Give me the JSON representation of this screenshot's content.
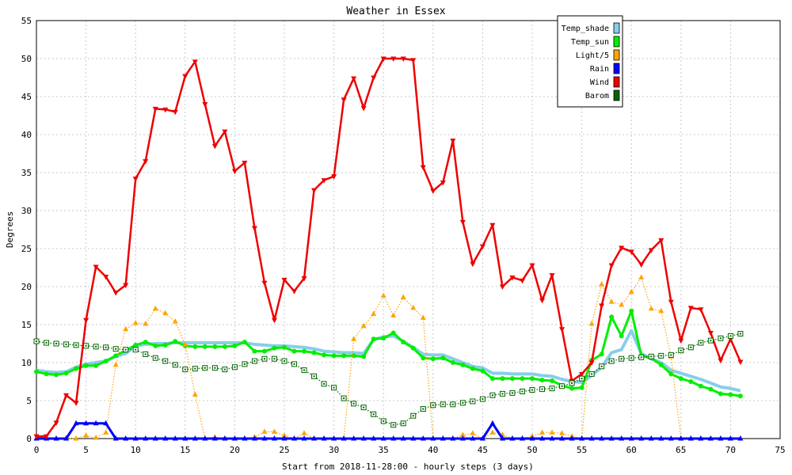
{
  "chart_data": {
    "type": "line",
    "title": "Weather in Essex",
    "xlabel": "Start from 2018-11-28:00 - hourly steps (3 days)",
    "ylabel": "Degrees",
    "xlim": [
      0,
      75
    ],
    "ylim": [
      0,
      55
    ],
    "x_ticks": [
      0,
      5,
      10,
      15,
      20,
      25,
      30,
      35,
      40,
      45,
      50,
      55,
      60,
      65,
      70,
      75
    ],
    "y_ticks": [
      0,
      5,
      10,
      15,
      20,
      25,
      30,
      35,
      40,
      45,
      50,
      55
    ],
    "grid": true,
    "legend_position": "top-right",
    "x": [
      0,
      1,
      2,
      3,
      4,
      5,
      6,
      7,
      8,
      9,
      10,
      11,
      12,
      13,
      14,
      15,
      16,
      17,
      18,
      19,
      20,
      21,
      22,
      23,
      24,
      25,
      26,
      27,
      28,
      29,
      30,
      31,
      32,
      33,
      34,
      35,
      36,
      37,
      38,
      39,
      40,
      41,
      42,
      43,
      44,
      45,
      46,
      47,
      48,
      49,
      50,
      51,
      52,
      53,
      54,
      55,
      56,
      57,
      58,
      59,
      60,
      61,
      62,
      63,
      64,
      65,
      66,
      67,
      68,
      69,
      70,
      71
    ],
    "series": [
      {
        "name": "Temp_shade",
        "color": "#87ceeb",
        "marker": "none",
        "style": "solid",
        "values": [
          9.0,
          8.8,
          8.7,
          8.8,
          9.4,
          9.8,
          10.0,
          10.2,
          10.8,
          11.2,
          12.2,
          12.4,
          12.5,
          12.5,
          12.6,
          12.6,
          12.6,
          12.6,
          12.6,
          12.6,
          12.6,
          12.6,
          12.4,
          12.3,
          12.2,
          12.2,
          12.1,
          12.0,
          11.8,
          11.5,
          11.4,
          11.3,
          11.3,
          11.2,
          13.0,
          13.4,
          13.5,
          12.8,
          12.0,
          11.1,
          11.0,
          11.0,
          10.5,
          10.0,
          9.5,
          9.3,
          8.6,
          8.6,
          8.5,
          8.5,
          8.5,
          8.3,
          8.2,
          7.8,
          7.5,
          7.4,
          8.3,
          9.4,
          11.3,
          11.7,
          14.2,
          11.2,
          10.5,
          10.0,
          9.0,
          8.6,
          8.2,
          7.8,
          7.3,
          6.8,
          6.6,
          6.3
        ]
      },
      {
        "name": "Temp_sun",
        "color": "#00ee00",
        "marker": "circle",
        "style": "solid",
        "values": [
          8.8,
          8.5,
          8.4,
          8.6,
          9.2,
          9.6,
          9.6,
          10.2,
          10.9,
          11.6,
          12.3,
          12.7,
          12.2,
          12.3,
          12.8,
          12.2,
          12.1,
          12.1,
          12.1,
          12.1,
          12.2,
          12.7,
          11.5,
          11.5,
          11.9,
          12.0,
          11.5,
          11.5,
          11.3,
          11.0,
          10.9,
          10.9,
          10.9,
          10.8,
          13.1,
          13.2,
          13.9,
          12.7,
          11.9,
          10.6,
          10.5,
          10.6,
          10.0,
          9.7,
          9.2,
          8.9,
          7.9,
          7.9,
          7.9,
          7.9,
          7.9,
          7.7,
          7.6,
          7.0,
          6.6,
          6.7,
          10.3,
          11.1,
          16.0,
          13.5,
          16.8,
          10.9,
          10.6,
          9.7,
          8.5,
          7.9,
          7.5,
          6.9,
          6.5,
          5.9,
          5.8,
          5.6
        ]
      },
      {
        "name": "Light/5",
        "color": "#ffa500",
        "marker": "triangle-up",
        "style": "dotted",
        "values": [
          0,
          0,
          0,
          0,
          0,
          0.4,
          0.1,
          0.8,
          9.7,
          14.4,
          15.2,
          15.1,
          17.1,
          16.5,
          15.4,
          12.4,
          5.8,
          0,
          0.2,
          0,
          0,
          0,
          0.2,
          0.9,
          0.9,
          0.4,
          0,
          0.7,
          0,
          0,
          0,
          0,
          13.1,
          14.8,
          16.4,
          18.8,
          16.2,
          18.6,
          17.2,
          15.9,
          0,
          0,
          0,
          0.5,
          0.7,
          0,
          0.8,
          0.5,
          0,
          0,
          0.3,
          0.8,
          0.8,
          0.7,
          0.3,
          0,
          15.1,
          20.3,
          18.0,
          17.6,
          19.3,
          21.2,
          17.1,
          16.8,
          10.8,
          0,
          0,
          0,
          0,
          0,
          0,
          0
        ]
      },
      {
        "name": "Rain",
        "color": "#0000ff",
        "marker": "triangle-up",
        "style": "solid",
        "values": [
          0,
          0,
          0,
          0,
          2.0,
          2.0,
          2.0,
          2.0,
          0,
          0,
          0,
          0,
          0,
          0,
          0,
          0,
          0,
          0,
          0,
          0,
          0,
          0,
          0,
          0,
          0,
          0,
          0,
          0,
          0,
          0,
          0,
          0,
          0,
          0,
          0,
          0,
          0,
          0,
          0,
          0,
          0,
          0,
          0,
          0,
          0,
          0,
          2.0,
          0,
          0,
          0,
          0,
          0,
          0,
          0,
          0,
          0,
          0,
          0,
          0,
          0,
          0,
          0,
          0,
          0,
          0,
          0,
          0,
          0,
          0,
          0,
          0,
          0
        ]
      },
      {
        "name": "Wind",
        "color": "#ee0000",
        "marker": "triangle-down",
        "style": "solid",
        "values": [
          0.3,
          0.3,
          2.1,
          5.7,
          4.7,
          15.6,
          22.6,
          21.3,
          19.2,
          20.2,
          34.2,
          36.5,
          43.4,
          43.3,
          43.0,
          47.7,
          49.6,
          44.0,
          38.5,
          40.4,
          35.2,
          36.3,
          27.7,
          20.5,
          15.6,
          20.9,
          19.4,
          21.1,
          32.7,
          34.0,
          34.5,
          44.6,
          47.4,
          43.5,
          47.5,
          50.0,
          50.0,
          50.0,
          49.8,
          35.7,
          32.6,
          33.7,
          39.2,
          28.5,
          23.0,
          25.3,
          28.1,
          20.0,
          21.2,
          20.8,
          22.8,
          18.2,
          21.5,
          14.4,
          7.6,
          8.5,
          10.0,
          17.5,
          22.8,
          25.1,
          24.6,
          22.9,
          24.8,
          26.1,
          18.0,
          12.9,
          17.2,
          17.0,
          13.9,
          10.3,
          13.1,
          10.1
        ]
      },
      {
        "name": "Barom",
        "color": "#006400",
        "marker": "square-open",
        "style": "dotted",
        "values": [
          12.8,
          12.6,
          12.5,
          12.4,
          12.3,
          12.2,
          12.1,
          12.0,
          11.8,
          11.7,
          11.7,
          11.1,
          10.6,
          10.2,
          9.7,
          9.1,
          9.2,
          9.3,
          9.3,
          9.1,
          9.4,
          9.8,
          10.2,
          10.5,
          10.5,
          10.2,
          9.8,
          9.0,
          8.2,
          7.2,
          6.7,
          5.3,
          4.6,
          4.1,
          3.2,
          2.3,
          1.8,
          2.0,
          3.0,
          3.9,
          4.4,
          4.5,
          4.5,
          4.7,
          4.9,
          5.2,
          5.7,
          5.9,
          6.0,
          6.2,
          6.4,
          6.5,
          6.6,
          6.9,
          7.3,
          7.9,
          8.5,
          9.5,
          10.2,
          10.5,
          10.6,
          10.7,
          10.8,
          10.9,
          11.0,
          11.6,
          12.0,
          12.6,
          12.9,
          13.2,
          13.5,
          13.8
        ]
      }
    ]
  }
}
